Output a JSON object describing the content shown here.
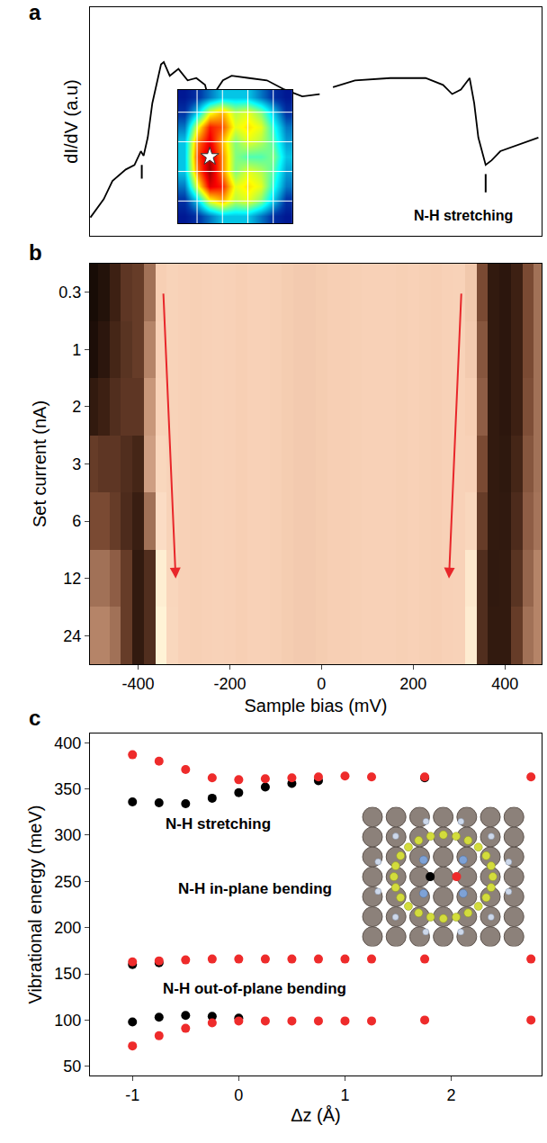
{
  "chart_data": [
    {
      "type": "line",
      "panel_label": "a",
      "y_label": "dI/dV (a.u)",
      "color": "#000000",
      "x": [
        -504,
        -475,
        -456,
        -427,
        -408,
        -394,
        -388,
        -379,
        -369,
        -360,
        -350,
        -344,
        -331,
        -312,
        -292,
        -273,
        -254,
        -244,
        -235,
        -215,
        -196,
        -158,
        -119,
        -81,
        -42,
        -4,
        0,
        25,
        73,
        150,
        227,
        265,
        285,
        304,
        323,
        333,
        342,
        358,
        371,
        390,
        419,
        448,
        473
      ],
      "values": [
        0.08,
        0.16,
        0.24,
        0.29,
        0.31,
        0.37,
        0.35,
        0.43,
        0.58,
        0.66,
        0.75,
        0.76,
        0.7,
        0.73,
        0.68,
        0.69,
        0.66,
        0.58,
        0.62,
        0.68,
        0.7,
        0.69,
        0.68,
        0.64,
        0.61,
        0.62,
        null,
        0.65,
        0.68,
        0.69,
        0.69,
        0.66,
        0.62,
        0.64,
        0.69,
        0.58,
        0.43,
        0.31,
        0.33,
        0.37,
        0.39,
        0.41,
        0.43
      ],
      "xlim": [
        -505,
        480
      ],
      "ylim": [
        0,
        1
      ],
      "tick_labels": false,
      "annotations": [
        {
          "text": "N-H stretching",
          "x": 309,
          "y": 0.09
        }
      ],
      "peak_marks": [
        {
          "x": -392,
          "y0": 0.25,
          "y1": 0.31
        },
        {
          "x": 358,
          "y0": 0.19,
          "y1": 0.27
        }
      ],
      "inset": {
        "type": "heatmap",
        "xlim": [
          -0.5,
          8.5
        ],
        "ylim": [
          -0.5,
          8.5
        ],
        "zlim": [
          0,
          1
        ],
        "xticks": [
          1,
          3,
          5,
          7
        ],
        "yticks": [
          1,
          3,
          5,
          7
        ],
        "grid": true,
        "tick_labels": false,
        "marker": "star",
        "star": {
          "x": 2,
          "y": 4
        },
        "z": [
          [
            0.05,
            0.1,
            0.2,
            0.3,
            0.3,
            0.3,
            0.2,
            0.1,
            0.05
          ],
          [
            0.1,
            0.3,
            0.6,
            0.7,
            0.55,
            0.6,
            0.5,
            0.3,
            0.1
          ],
          [
            0.2,
            0.6,
            0.85,
            0.8,
            0.6,
            0.65,
            0.6,
            0.4,
            0.2
          ],
          [
            0.3,
            0.75,
            0.9,
            0.7,
            0.5,
            0.6,
            0.55,
            0.45,
            0.25
          ],
          [
            0.3,
            0.8,
            0.95,
            0.75,
            0.5,
            0.45,
            0.45,
            0.5,
            0.3
          ],
          [
            0.3,
            0.75,
            0.97,
            0.75,
            0.5,
            0.6,
            0.55,
            0.45,
            0.25
          ],
          [
            0.2,
            0.6,
            0.9,
            0.85,
            0.6,
            0.65,
            0.6,
            0.4,
            0.2
          ],
          [
            0.1,
            0.3,
            0.6,
            0.7,
            0.55,
            0.6,
            0.5,
            0.3,
            0.1
          ],
          [
            0.05,
            0.1,
            0.2,
            0.3,
            0.3,
            0.3,
            0.2,
            0.1,
            0.05
          ]
        ]
      }
    },
    {
      "type": "heatmap",
      "panel_label": "b",
      "x_label": "Sample bias (mV)",
      "y_label": "Set current (nA)",
      "x": [
        -500,
        -475,
        -450,
        -425,
        -400,
        -375,
        -350,
        -325,
        -300,
        -275,
        -250,
        -225,
        -200,
        -175,
        -150,
        -125,
        -100,
        -75,
        -50,
        -25,
        0,
        25,
        50,
        75,
        100,
        125,
        150,
        175,
        200,
        225,
        250,
        275,
        300,
        325,
        350,
        375,
        400,
        425,
        450,
        475
      ],
      "categories": [
        "0.3",
        "1",
        "2",
        "3",
        "6",
        "12",
        "24"
      ],
      "xlim": [
        -505,
        480
      ],
      "xticks": [
        -400,
        -200,
        0,
        200,
        400
      ],
      "zlim": [
        0,
        1
      ],
      "z": [
        [
          0.03,
          0.08,
          0.2,
          0.28,
          0.3,
          0.45,
          0.78,
          0.82,
          0.8,
          0.79,
          0.8,
          0.81,
          0.8,
          0.78,
          0.8,
          0.8,
          0.79,
          0.77,
          0.76,
          0.76,
          0.77,
          0.78,
          0.78,
          0.79,
          0.8,
          0.8,
          0.8,
          0.79,
          0.8,
          0.79,
          0.78,
          0.8,
          0.81,
          0.75,
          0.35,
          0.15,
          0.12,
          0.2,
          0.35,
          0.45
        ],
        [
          0.05,
          0.12,
          0.22,
          0.27,
          0.3,
          0.5,
          0.8,
          0.82,
          0.8,
          0.79,
          0.8,
          0.81,
          0.8,
          0.78,
          0.8,
          0.8,
          0.79,
          0.77,
          0.76,
          0.76,
          0.77,
          0.78,
          0.78,
          0.79,
          0.8,
          0.8,
          0.8,
          0.79,
          0.8,
          0.79,
          0.78,
          0.8,
          0.81,
          0.76,
          0.38,
          0.15,
          0.12,
          0.2,
          0.35,
          0.45
        ],
        [
          0.15,
          0.2,
          0.25,
          0.28,
          0.28,
          0.55,
          0.82,
          0.82,
          0.8,
          0.79,
          0.8,
          0.81,
          0.8,
          0.78,
          0.8,
          0.8,
          0.79,
          0.77,
          0.76,
          0.76,
          0.77,
          0.78,
          0.78,
          0.79,
          0.8,
          0.8,
          0.8,
          0.79,
          0.8,
          0.79,
          0.78,
          0.8,
          0.81,
          0.78,
          0.4,
          0.15,
          0.12,
          0.2,
          0.36,
          0.45
        ],
        [
          0.3,
          0.28,
          0.28,
          0.25,
          0.22,
          0.58,
          0.85,
          0.82,
          0.8,
          0.79,
          0.8,
          0.81,
          0.8,
          0.78,
          0.8,
          0.8,
          0.79,
          0.77,
          0.76,
          0.76,
          0.77,
          0.78,
          0.78,
          0.79,
          0.8,
          0.8,
          0.8,
          0.79,
          0.8,
          0.79,
          0.78,
          0.8,
          0.81,
          0.8,
          0.35,
          0.15,
          0.13,
          0.22,
          0.38,
          0.45
        ],
        [
          0.35,
          0.35,
          0.3,
          0.24,
          0.18,
          0.45,
          0.9,
          0.82,
          0.8,
          0.79,
          0.8,
          0.81,
          0.8,
          0.78,
          0.8,
          0.8,
          0.79,
          0.77,
          0.76,
          0.76,
          0.77,
          0.78,
          0.78,
          0.79,
          0.8,
          0.8,
          0.8,
          0.79,
          0.8,
          0.79,
          0.78,
          0.8,
          0.81,
          0.85,
          0.3,
          0.15,
          0.14,
          0.24,
          0.4,
          0.46
        ],
        [
          0.45,
          0.45,
          0.4,
          0.3,
          0.15,
          0.25,
          0.98,
          0.84,
          0.8,
          0.79,
          0.8,
          0.81,
          0.8,
          0.78,
          0.8,
          0.8,
          0.79,
          0.77,
          0.76,
          0.76,
          0.77,
          0.78,
          0.78,
          0.79,
          0.8,
          0.8,
          0.8,
          0.79,
          0.8,
          0.79,
          0.78,
          0.8,
          0.81,
          0.95,
          0.25,
          0.14,
          0.15,
          0.27,
          0.42,
          0.5
        ],
        [
          0.5,
          0.5,
          0.45,
          0.3,
          0.15,
          0.25,
          1.0,
          0.85,
          0.8,
          0.79,
          0.8,
          0.81,
          0.8,
          0.78,
          0.8,
          0.8,
          0.79,
          0.77,
          0.76,
          0.76,
          0.77,
          0.78,
          0.78,
          0.79,
          0.8,
          0.8,
          0.8,
          0.79,
          0.8,
          0.79,
          0.78,
          0.8,
          0.81,
          0.97,
          0.25,
          0.15,
          0.15,
          0.3,
          0.45,
          0.5
        ]
      ],
      "arrows": [
        {
          "from": [
            -345,
            "0.3"
          ],
          "to": [
            -318,
            "12"
          ],
          "color": "#e8262a"
        },
        {
          "from": [
            305,
            "0.3"
          ],
          "to": [
            278,
            "12"
          ],
          "color": "#e8262a"
        }
      ]
    },
    {
      "type": "scatter",
      "panel_label": "c",
      "x_label": "Δz (Å)",
      "y_label": "Vibrational energy (meV)",
      "xlim": [
        -1.4,
        2.85
      ],
      "xticks": [
        -1,
        0,
        1,
        2
      ],
      "ylim": [
        40,
        410
      ],
      "yticks": [
        50,
        100,
        150,
        200,
        250,
        300,
        350,
        400
      ],
      "series": [
        {
          "color": "#000000",
          "x": [
            -1,
            -0.75,
            -0.5,
            -0.25,
            0,
            0.25,
            0.5,
            0.75,
            1.75
          ],
          "values": [
            336,
            335,
            334,
            340,
            346,
            352,
            356,
            359,
            362
          ]
        },
        {
          "color": "#000000",
          "x": [
            -1,
            -0.75
          ],
          "values": [
            160,
            162
          ]
        },
        {
          "color": "#000000",
          "x": [
            -1,
            -0.75,
            -0.5,
            -0.25,
            0
          ],
          "values": [
            98,
            103,
            105,
            104,
            102
          ]
        },
        {
          "color": "#ee2b2b",
          "x": [
            -1,
            -0.75,
            -0.5,
            -0.25,
            0,
            0.25,
            0.5,
            0.75,
            1,
            1.25,
            1.75,
            2.75
          ],
          "values": [
            387,
            380,
            371,
            362,
            360,
            361,
            362,
            363,
            364,
            363,
            363,
            363
          ]
        },
        {
          "color": "#ee2b2b",
          "x": [
            -1,
            -0.75,
            -0.5,
            -0.25,
            0,
            0.25,
            0.5,
            0.75,
            1,
            1.25,
            1.75,
            2.75
          ],
          "values": [
            163,
            164,
            165,
            166,
            166,
            166,
            166,
            166,
            166,
            166,
            166,
            166
          ]
        },
        {
          "color": "#ee2b2b",
          "x": [
            -1,
            -0.75,
            -0.5,
            -0.25,
            0,
            0.25,
            0.5,
            0.75,
            1,
            1.25,
            1.75,
            2.75
          ],
          "values": [
            72,
            83,
            91,
            97,
            99,
            99,
            99,
            99,
            99,
            99,
            100,
            100
          ]
        }
      ],
      "annotations": [
        {
          "text": "N-H stretching",
          "x": -0.19,
          "y": 312
        },
        {
          "text": "N-H in-plane bending",
          "x": 0.15,
          "y": 242
        },
        {
          "text": "N-H out-of-plane bending",
          "x": 0.15,
          "y": 134
        }
      ]
    }
  ]
}
